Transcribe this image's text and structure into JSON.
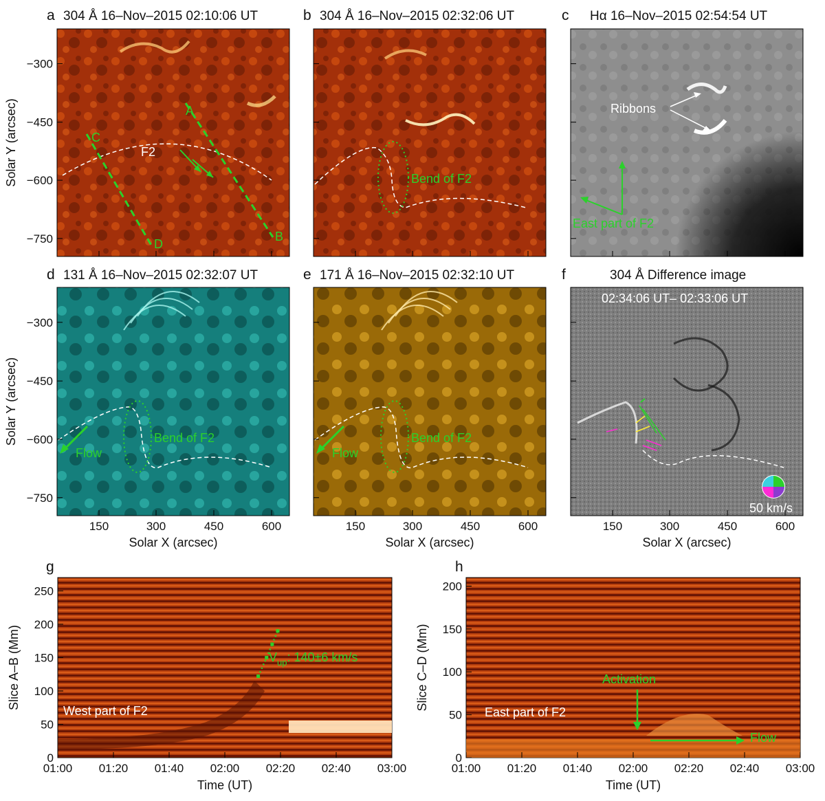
{
  "colors": {
    "aia304": "#b83a0a",
    "aia131": "#1fb8b0",
    "aia171": "#c48a12",
    "halpha": "#8f8f8f",
    "difference": "#7d7d7d",
    "timeslice": "#a8320c",
    "annotation_green": "#2bd12b",
    "annotation_white": "#ffffff"
  },
  "panels": {
    "a": {
      "letter": "a",
      "title": "304 Å 16–Nov–2015 02:10:06 UT",
      "labels": {
        "A": "A",
        "B": "B",
        "C": "C",
        "D": "D",
        "F2": "F2"
      }
    },
    "b": {
      "letter": "b",
      "title": "304 Å 16–Nov–2015 02:32:06 UT",
      "bend": "Bend of F2"
    },
    "c": {
      "letter": "c",
      "title": "Hα 16–Nov–2015 02:54:54 UT",
      "ribbons": "Ribbons",
      "east": "East part of F2"
    },
    "d": {
      "letter": "d",
      "title": "131 Å 16–Nov–2015 02:32:07 UT",
      "bend": "Bend of F2",
      "flow": "Flow"
    },
    "e": {
      "letter": "e",
      "title": "171 Å 16–Nov–2015 02:32:10 UT",
      "bend": "Bend of F2",
      "flow": "Flow"
    },
    "f": {
      "letter": "f",
      "title": "304 Å Difference image",
      "subtitle": "02:34:06 UT– 02:33:06 UT",
      "scale": "50 km/s"
    },
    "g": {
      "letter": "g",
      "label": "West part of F2",
      "vel_prefix": "V",
      "vel_sub": "up",
      "vel_value": ": 140±6 km/s"
    },
    "h": {
      "letter": "h",
      "label": "East part of F2",
      "activation": "Activation",
      "flow": "Flow"
    }
  },
  "axes": {
    "solar_x_label": "Solar X (arcsec)",
    "solar_y_label": "Solar Y (arcsec)",
    "solar_x_ticks": [
      "150",
      "300",
      "450",
      "600"
    ],
    "solar_y_ticks": [
      "−300",
      "−450",
      "−600",
      "−750"
    ],
    "time_label": "Time (UT)",
    "time_ticks": [
      "01:00",
      "01:20",
      "01:40",
      "02:00",
      "02:20",
      "02:40",
      "03:00"
    ],
    "slice_ab_label": "Slice A–B (Mm)",
    "slice_ab_ticks": [
      "0",
      "50",
      "100",
      "150",
      "200",
      "250"
    ],
    "slice_cd_label": "Slice C–D (Mm)",
    "slice_cd_ticks": [
      "0",
      "50",
      "100",
      "150",
      "200"
    ]
  },
  "chart_data": [
    {
      "type": "scatter",
      "title": "West part of F2",
      "xlabel": "Time (UT)",
      "ylabel": "Slice A–B (Mm)",
      "xlim": [
        "01:00",
        "03:00"
      ],
      "ylim": [
        0,
        270
      ],
      "series": [
        {
          "name": "Vup fit 140±6 km/s",
          "x": [
            "02:12",
            "02:15",
            "02:17",
            "02:19"
          ],
          "y": [
            122,
            150,
            170,
            190
          ]
        }
      ]
    },
    {
      "type": "line",
      "title": "East part of F2",
      "xlabel": "Time (UT)",
      "ylabel": "Slice C–D (Mm)",
      "xlim": [
        "01:00",
        "03:00"
      ],
      "ylim": [
        0,
        210
      ],
      "annotations": [
        {
          "text": "Activation",
          "x": "02:02",
          "y": 35
        },
        {
          "text": "Flow",
          "x_start": "02:06",
          "x_end": "02:40",
          "y": 20
        }
      ]
    }
  ]
}
